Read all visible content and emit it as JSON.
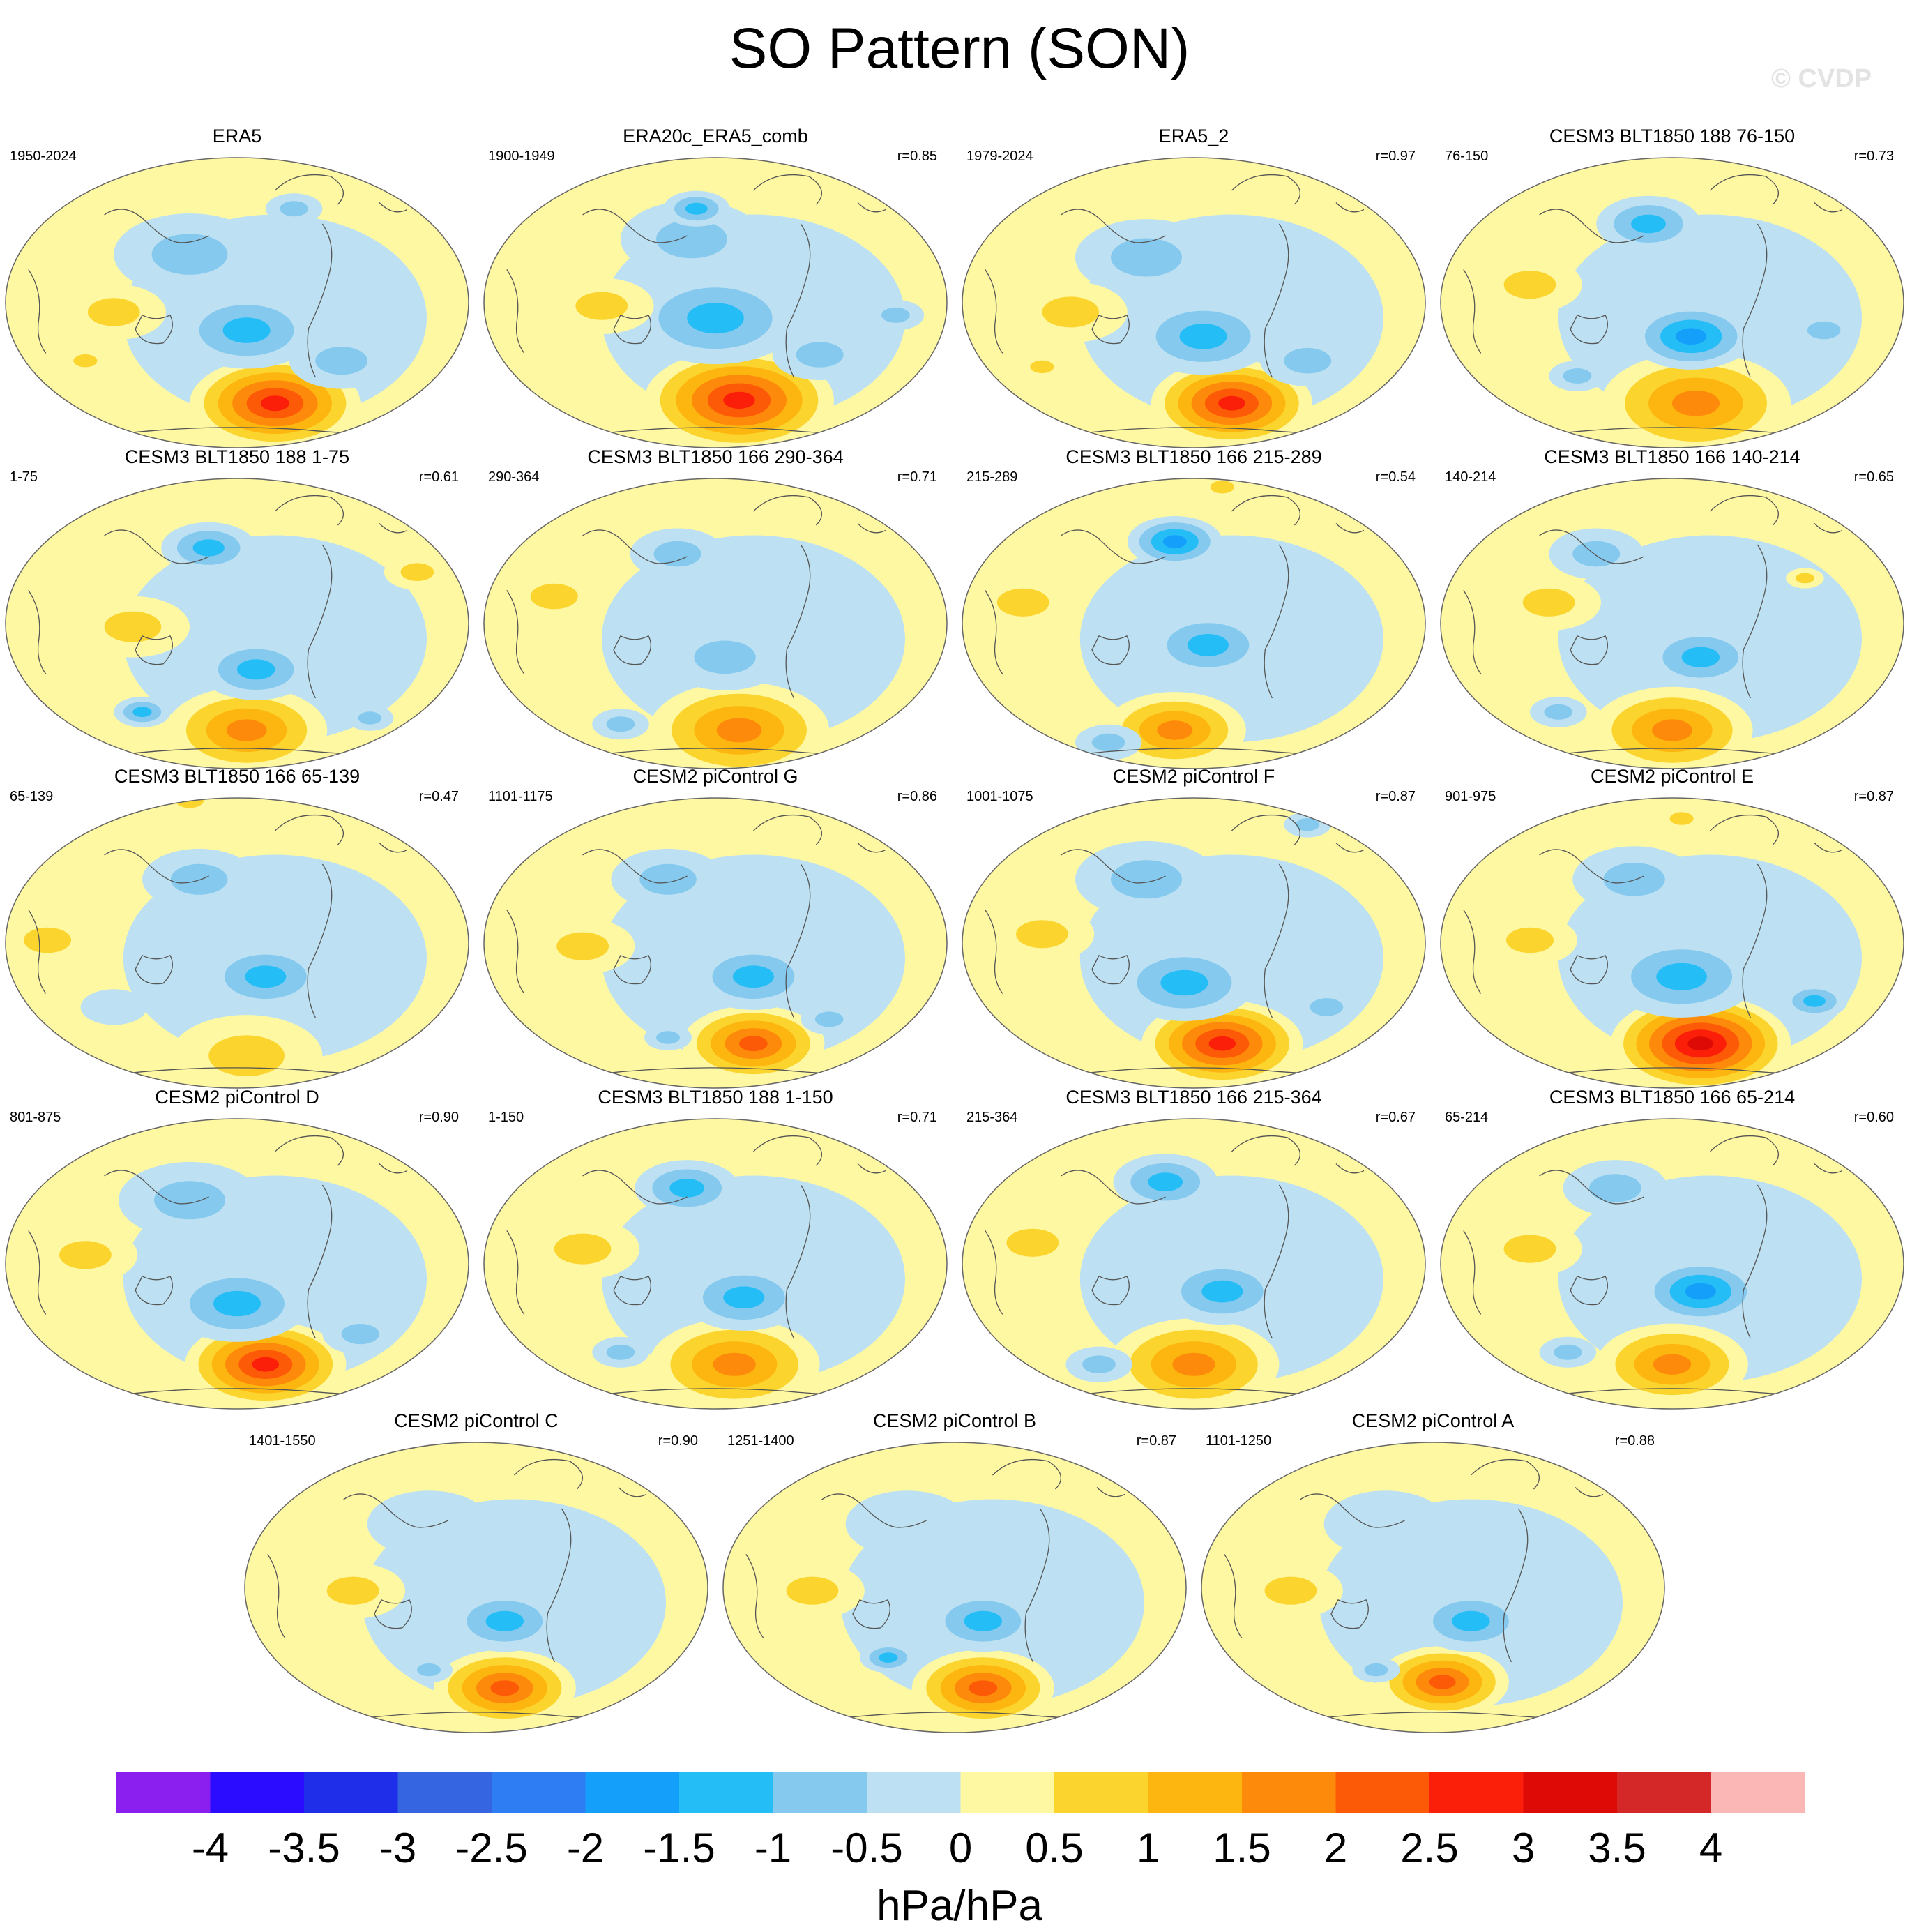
{
  "title": "SO Pattern (SON)",
  "watermark": "© CVDP",
  "chart_data": {
    "type": "heatmap",
    "projection": "Robinson (Pacific-centered global map)",
    "field": "SLP regression onto Southern Oscillation index",
    "season": "SON",
    "panels": [
      {
        "name": "ERA5",
        "period": "1950-2024",
        "r": "",
        "blobs": [
          [
            0.58,
            0.84,
            0.36,
            2.8
          ],
          [
            0.52,
            0.6,
            0.3,
            -1.2
          ],
          [
            0.72,
            0.7,
            0.22,
            -1.0
          ],
          [
            0.4,
            0.35,
            0.32,
            -0.6
          ],
          [
            0.24,
            0.54,
            0.22,
            0.8
          ],
          [
            0.18,
            0.7,
            0.1,
            0.6
          ],
          [
            0.62,
            0.2,
            0.12,
            -0.8
          ]
        ]
      },
      {
        "name": "ERA20c_ERA5_comb",
        "period": "1900-1949",
        "r": "r=0.85",
        "blobs": [
          [
            0.55,
            0.83,
            0.4,
            3.0
          ],
          [
            0.5,
            0.56,
            0.36,
            -1.3
          ],
          [
            0.72,
            0.68,
            0.2,
            -0.9
          ],
          [
            0.45,
            0.3,
            0.3,
            -0.7
          ],
          [
            0.26,
            0.52,
            0.22,
            0.9
          ],
          [
            0.46,
            0.2,
            0.14,
            -1.2
          ],
          [
            0.88,
            0.55,
            0.12,
            -0.6
          ]
        ]
      },
      {
        "name": "ERA5_2",
        "period": "1979-2024",
        "r": "r=0.97",
        "blobs": [
          [
            0.58,
            0.84,
            0.34,
            3.0
          ],
          [
            0.52,
            0.62,
            0.3,
            -1.2
          ],
          [
            0.74,
            0.7,
            0.2,
            -1.0
          ],
          [
            0.4,
            0.36,
            0.3,
            -0.6
          ],
          [
            0.24,
            0.54,
            0.24,
            0.8
          ],
          [
            0.18,
            0.72,
            0.1,
            0.6
          ]
        ]
      },
      {
        "name": "CESM3 BLT1850 188 76-150",
        "period": "76-150",
        "r": "r=0.73",
        "blobs": [
          [
            0.55,
            0.84,
            0.4,
            1.6
          ],
          [
            0.54,
            0.62,
            0.26,
            -1.6
          ],
          [
            0.45,
            0.25,
            0.22,
            -1.4
          ],
          [
            0.2,
            0.45,
            0.22,
            1.0
          ],
          [
            0.82,
            0.6,
            0.14,
            -0.8
          ],
          [
            0.3,
            0.75,
            0.12,
            -0.6
          ]
        ]
      },
      {
        "name": "CESM3 BLT1850 188 1-75",
        "period": "1-75",
        "r": "r=0.61",
        "blobs": [
          [
            0.52,
            0.86,
            0.34,
            1.6
          ],
          [
            0.54,
            0.66,
            0.24,
            -1.5
          ],
          [
            0.44,
            0.26,
            0.2,
            -1.4
          ],
          [
            0.28,
            0.52,
            0.24,
            1.0
          ],
          [
            0.3,
            0.8,
            0.12,
            -1.4
          ],
          [
            0.78,
            0.82,
            0.1,
            -0.9
          ],
          [
            0.88,
            0.34,
            0.14,
            0.6
          ]
        ]
      },
      {
        "name": "CESM3 BLT1850 166 290-364",
        "period": "290-364",
        "r": "r=0.71",
        "blobs": [
          [
            0.55,
            0.86,
            0.38,
            1.6
          ],
          [
            0.52,
            0.62,
            0.26,
            -1.0
          ],
          [
            0.42,
            0.28,
            0.2,
            -0.8
          ],
          [
            0.16,
            0.42,
            0.2,
            1.0
          ],
          [
            0.3,
            0.84,
            0.12,
            -0.8
          ]
        ]
      },
      {
        "name": "CESM3 BLT1850 166 215-289",
        "period": "215-289",
        "r": "r=0.54",
        "blobs": [
          [
            0.46,
            0.86,
            0.3,
            1.8
          ],
          [
            0.53,
            0.58,
            0.26,
            -1.2
          ],
          [
            0.46,
            0.24,
            0.2,
            -1.6
          ],
          [
            0.14,
            0.44,
            0.22,
            1.0
          ],
          [
            0.56,
            0.06,
            0.1,
            0.8
          ],
          [
            0.32,
            0.9,
            0.14,
            -0.6
          ]
        ]
      },
      {
        "name": "CESM3 BLT1850 166 140-214",
        "period": "140-214",
        "r": "r=0.65",
        "blobs": [
          [
            0.5,
            0.86,
            0.34,
            1.8
          ],
          [
            0.56,
            0.62,
            0.24,
            -1.4
          ],
          [
            0.34,
            0.28,
            0.2,
            -0.8
          ],
          [
            0.24,
            0.44,
            0.22,
            1.0
          ],
          [
            0.26,
            0.8,
            0.12,
            -0.9
          ],
          [
            0.78,
            0.36,
            0.08,
            0.8
          ]
        ]
      },
      {
        "name": "CESM3 BLT1850 166 65-139",
        "period": "65-139",
        "r": "r=0.47",
        "blobs": [
          [
            0.52,
            0.88,
            0.32,
            1.0
          ],
          [
            0.56,
            0.62,
            0.26,
            -1.4
          ],
          [
            0.42,
            0.3,
            0.24,
            -0.8
          ],
          [
            0.1,
            0.5,
            0.2,
            1.0
          ],
          [
            0.24,
            0.72,
            0.14,
            -0.5
          ],
          [
            0.4,
            0.04,
            0.12,
            0.8
          ]
        ]
      },
      {
        "name": "CESM2 piControl G",
        "period": "1101-1175",
        "r": "r=0.86",
        "blobs": [
          [
            0.58,
            0.84,
            0.3,
            2.2
          ],
          [
            0.58,
            0.62,
            0.26,
            -1.4
          ],
          [
            0.4,
            0.3,
            0.24,
            -0.6
          ],
          [
            0.22,
            0.52,
            0.22,
            1.0
          ],
          [
            0.4,
            0.82,
            0.1,
            -1.0
          ],
          [
            0.74,
            0.76,
            0.12,
            -0.8
          ]
        ]
      },
      {
        "name": "CESM2 piControl F",
        "period": "1001-1075",
        "r": "r=0.87",
        "blobs": [
          [
            0.56,
            0.84,
            0.34,
            2.6
          ],
          [
            0.48,
            0.64,
            0.3,
            -1.3
          ],
          [
            0.78,
            0.72,
            0.14,
            -1.0
          ],
          [
            0.4,
            0.3,
            0.3,
            -0.6
          ],
          [
            0.18,
            0.48,
            0.22,
            0.9
          ],
          [
            0.74,
            0.12,
            0.1,
            -0.8
          ]
        ]
      },
      {
        "name": "CESM2 piControl E",
        "period": "901-975",
        "r": "r=0.87",
        "blobs": [
          [
            0.56,
            0.84,
            0.38,
            3.2
          ],
          [
            0.52,
            0.62,
            0.32,
            -1.3
          ],
          [
            0.8,
            0.7,
            0.14,
            -1.2
          ],
          [
            0.42,
            0.3,
            0.26,
            -0.6
          ],
          [
            0.2,
            0.5,
            0.2,
            1.0
          ],
          [
            0.52,
            0.1,
            0.1,
            1.0
          ]
        ]
      },
      {
        "name": "CESM2 piControl D",
        "period": "801-875",
        "r": "r=0.90",
        "blobs": [
          [
            0.56,
            0.84,
            0.34,
            2.8
          ],
          [
            0.5,
            0.64,
            0.3,
            -1.2
          ],
          [
            0.76,
            0.74,
            0.16,
            -1.0
          ],
          [
            0.4,
            0.3,
            0.3,
            -0.6
          ],
          [
            0.18,
            0.48,
            0.22,
            0.9
          ],
          [
            0.12,
            0.86,
            0.1,
            1.2
          ]
        ]
      },
      {
        "name": "CESM3 BLT1850 188 1-150",
        "period": "1-150",
        "r": "r=0.71",
        "blobs": [
          [
            0.54,
            0.84,
            0.36,
            1.6
          ],
          [
            0.56,
            0.62,
            0.26,
            -1.5
          ],
          [
            0.44,
            0.26,
            0.22,
            -1.2
          ],
          [
            0.22,
            0.46,
            0.24,
            1.0
          ],
          [
            0.3,
            0.8,
            0.12,
            -0.9
          ]
        ]
      },
      {
        "name": "CESM3 BLT1850 166 215-364",
        "period": "215-364",
        "r": "r=0.67",
        "blobs": [
          [
            0.5,
            0.84,
            0.36,
            1.6
          ],
          [
            0.56,
            0.6,
            0.26,
            -1.4
          ],
          [
            0.44,
            0.24,
            0.22,
            -1.4
          ],
          [
            0.16,
            0.44,
            0.22,
            1.0
          ],
          [
            0.3,
            0.84,
            0.14,
            -0.8
          ]
        ]
      },
      {
        "name": "CESM3 BLT1850 166 65-214",
        "period": "65-214",
        "r": "r=0.60",
        "blobs": [
          [
            0.5,
            0.84,
            0.32,
            1.8
          ],
          [
            0.56,
            0.6,
            0.26,
            -1.6
          ],
          [
            0.38,
            0.26,
            0.22,
            -0.8
          ],
          [
            0.2,
            0.46,
            0.22,
            1.0
          ],
          [
            0.28,
            0.8,
            0.12,
            -0.9
          ]
        ]
      },
      {
        "name": "CESM2 piControl C",
        "period": "1401-1550",
        "r": "r=0.90",
        "blobs": [
          [
            0.56,
            0.84,
            0.3,
            2.4
          ],
          [
            0.56,
            0.62,
            0.24,
            -1.4
          ],
          [
            0.4,
            0.3,
            0.26,
            -0.5
          ],
          [
            0.24,
            0.52,
            0.22,
            1.0
          ],
          [
            0.4,
            0.78,
            0.1,
            -0.8
          ]
        ]
      },
      {
        "name": "CESM2 piControl B",
        "period": "1251-1400",
        "r": "r=0.87",
        "blobs": [
          [
            0.56,
            0.84,
            0.3,
            2.2
          ],
          [
            0.56,
            0.62,
            0.24,
            -1.4
          ],
          [
            0.36,
            0.74,
            0.12,
            -1.2
          ],
          [
            0.4,
            0.3,
            0.26,
            -0.5
          ],
          [
            0.2,
            0.52,
            0.22,
            1.0
          ]
        ]
      },
      {
        "name": "CESM2 piControl A",
        "period": "1101-1250",
        "r": "r=0.88",
        "blobs": [
          [
            0.52,
            0.82,
            0.28,
            2.2
          ],
          [
            0.58,
            0.62,
            0.24,
            -1.4
          ],
          [
            0.38,
            0.78,
            0.1,
            -0.9
          ],
          [
            0.4,
            0.3,
            0.26,
            -0.5
          ],
          [
            0.2,
            0.52,
            0.22,
            1.0
          ]
        ]
      }
    ],
    "colorbar": {
      "levels": [
        -4,
        -3.5,
        -3,
        -2.5,
        -2,
        -1.5,
        -1,
        -0.5,
        0,
        0.5,
        1,
        1.5,
        2,
        2.5,
        3,
        3.5,
        4
      ],
      "tick_labels": [
        "-4",
        "-3.5",
        "-3",
        "-2.5",
        "-2",
        "-1.5",
        "-1",
        "-0.5",
        "0",
        "0.5",
        "1",
        "1.5",
        "2",
        "2.5",
        "3",
        "3.5",
        "4"
      ],
      "colors": [
        "#8a1ff0",
        "#2b0cff",
        "#1f2ee8",
        "#3565e0",
        "#2f7df2",
        "#149ffb",
        "#25bdf6",
        "#85c9ef",
        "#bde1f2",
        "#fff8a3",
        "#fcd42e",
        "#fdb50f",
        "#fd8a0a",
        "#fd5a08",
        "#fb1e08",
        "#dd0a06",
        "#d42828",
        "#fbb6b6"
      ],
      "units": "hPa/hPa"
    }
  }
}
